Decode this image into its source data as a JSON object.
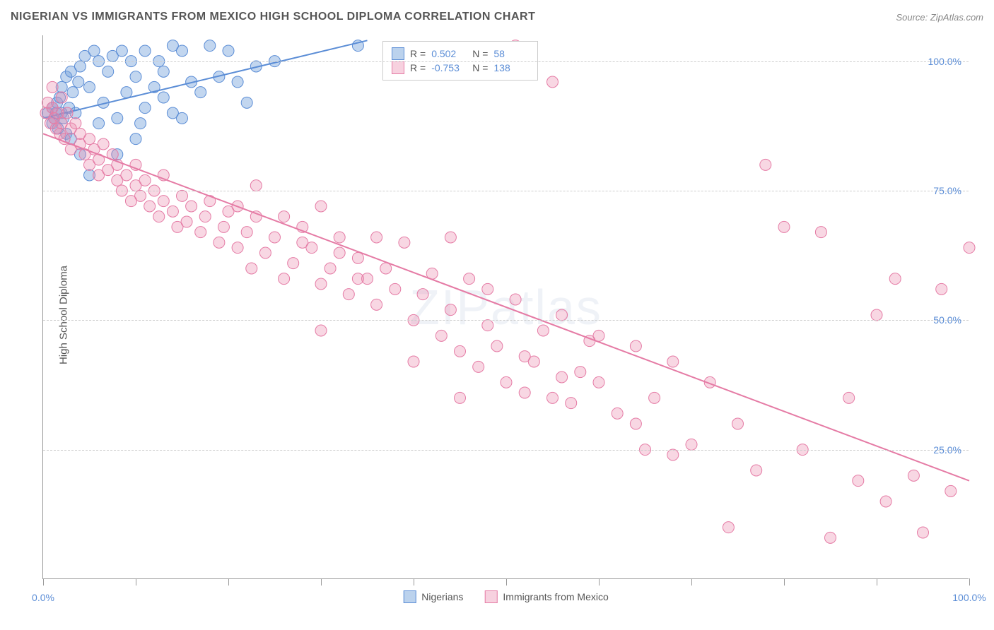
{
  "title": "NIGERIAN VS IMMIGRANTS FROM MEXICO HIGH SCHOOL DIPLOMA CORRELATION CHART",
  "source": "Source: ZipAtlas.com",
  "watermark": "ZIPatlas",
  "ylabel": "High School Diploma",
  "xlim": [
    0,
    100
  ],
  "ylim": [
    0,
    105
  ],
  "xtick_labels": [
    "0.0%",
    "100.0%"
  ],
  "xtick_positions": [
    0,
    100
  ],
  "ytick_labels": [
    "25.0%",
    "50.0%",
    "75.0%",
    "100.0%"
  ],
  "ytick_positions": [
    25,
    50,
    75,
    100
  ],
  "xtick_minor": [
    0,
    10,
    20,
    30,
    40,
    50,
    60,
    70,
    80,
    90,
    100
  ],
  "series": [
    {
      "name": "Nigerians",
      "color_fill": "rgba(120,165,220,0.45)",
      "color_stroke": "#5b8dd6",
      "swatch_fill": "rgba(120,165,220,0.5)",
      "swatch_border": "#5b8dd6",
      "R": "0.502",
      "N": "58",
      "trend": {
        "x1": 0,
        "y1": 89,
        "x2": 35,
        "y2": 104
      },
      "points": [
        [
          0.5,
          90
        ],
        [
          1,
          91
        ],
        [
          1,
          88
        ],
        [
          1.2,
          89
        ],
        [
          1.4,
          90
        ],
        [
          1.5,
          92
        ],
        [
          1.6,
          87
        ],
        [
          1.8,
          93
        ],
        [
          2,
          90
        ],
        [
          2,
          95
        ],
        [
          2.2,
          89
        ],
        [
          2.5,
          86
        ],
        [
          2.5,
          97
        ],
        [
          2.8,
          91
        ],
        [
          3,
          98
        ],
        [
          3,
          85
        ],
        [
          3.2,
          94
        ],
        [
          3.5,
          90
        ],
        [
          3.8,
          96
        ],
        [
          4,
          82
        ],
        [
          4,
          99
        ],
        [
          4.5,
          101
        ],
        [
          5,
          78
        ],
        [
          5,
          95
        ],
        [
          5.5,
          102
        ],
        [
          6,
          100
        ],
        [
          6.5,
          92
        ],
        [
          7,
          98
        ],
        [
          7.5,
          101
        ],
        [
          8,
          89
        ],
        [
          8.5,
          102
        ],
        [
          9,
          94
        ],
        [
          9.5,
          100
        ],
        [
          10,
          97
        ],
        [
          10.5,
          88
        ],
        [
          11,
          102
        ],
        [
          12,
          95
        ],
        [
          12.5,
          100
        ],
        [
          13,
          98
        ],
        [
          14,
          103
        ],
        [
          15,
          102
        ],
        [
          16,
          96
        ],
        [
          17,
          94
        ],
        [
          18,
          103
        ],
        [
          19,
          97
        ],
        [
          20,
          102
        ],
        [
          21,
          96
        ],
        [
          22,
          92
        ],
        [
          23,
          99
        ],
        [
          14,
          90
        ],
        [
          10,
          85
        ],
        [
          8,
          82
        ],
        [
          6,
          88
        ],
        [
          11,
          91
        ],
        [
          13,
          93
        ],
        [
          15,
          89
        ],
        [
          34,
          103
        ],
        [
          25,
          100
        ]
      ]
    },
    {
      "name": "Immigrants from Mexico",
      "color_fill": "rgba(235,140,175,0.35)",
      "color_stroke": "#e57ba5",
      "swatch_fill": "rgba(235,140,175,0.4)",
      "swatch_border": "#e57ba5",
      "R": "-0.753",
      "N": "138",
      "trend": {
        "x1": 0,
        "y1": 86,
        "x2": 100,
        "y2": 19
      },
      "points": [
        [
          0.3,
          90
        ],
        [
          0.5,
          92
        ],
        [
          0.8,
          88
        ],
        [
          1,
          91
        ],
        [
          1,
          95
        ],
        [
          1.2,
          89
        ],
        [
          1.4,
          87
        ],
        [
          1.6,
          90
        ],
        [
          1.8,
          86
        ],
        [
          2,
          88
        ],
        [
          2,
          93
        ],
        [
          2.3,
          85
        ],
        [
          2.6,
          90
        ],
        [
          3,
          87
        ],
        [
          3,
          83
        ],
        [
          3.5,
          88
        ],
        [
          4,
          84
        ],
        [
          4,
          86
        ],
        [
          4.5,
          82
        ],
        [
          5,
          85
        ],
        [
          5,
          80
        ],
        [
          5.5,
          83
        ],
        [
          6,
          81
        ],
        [
          6,
          78
        ],
        [
          6.5,
          84
        ],
        [
          7,
          79
        ],
        [
          7.5,
          82
        ],
        [
          8,
          77
        ],
        [
          8,
          80
        ],
        [
          8.5,
          75
        ],
        [
          9,
          78
        ],
        [
          9.5,
          73
        ],
        [
          10,
          76
        ],
        [
          10,
          80
        ],
        [
          10.5,
          74
        ],
        [
          11,
          77
        ],
        [
          11.5,
          72
        ],
        [
          12,
          75
        ],
        [
          12.5,
          70
        ],
        [
          13,
          73
        ],
        [
          13,
          78
        ],
        [
          14,
          71
        ],
        [
          14.5,
          68
        ],
        [
          15,
          74
        ],
        [
          15.5,
          69
        ],
        [
          16,
          72
        ],
        [
          17,
          67
        ],
        [
          17.5,
          70
        ],
        [
          18,
          73
        ],
        [
          19,
          65
        ],
        [
          19.5,
          68
        ],
        [
          20,
          71
        ],
        [
          21,
          64
        ],
        [
          22,
          67
        ],
        [
          22.5,
          60
        ],
        [
          23,
          70
        ],
        [
          24,
          63
        ],
        [
          25,
          66
        ],
        [
          26,
          58
        ],
        [
          27,
          61
        ],
        [
          28,
          65
        ],
        [
          29,
          64
        ],
        [
          30,
          57
        ],
        [
          31,
          60
        ],
        [
          32,
          66
        ],
        [
          33,
          55
        ],
        [
          34,
          62
        ],
        [
          35,
          58
        ],
        [
          36,
          53
        ],
        [
          37,
          60
        ],
        [
          38,
          56
        ],
        [
          39,
          65
        ],
        [
          40,
          50
        ],
        [
          41,
          55
        ],
        [
          42,
          59
        ],
        [
          43,
          47
        ],
        [
          44,
          52
        ],
        [
          45,
          44
        ],
        [
          46,
          58
        ],
        [
          47,
          41
        ],
        [
          48,
          49
        ],
        [
          49,
          45
        ],
        [
          50,
          38
        ],
        [
          51,
          54
        ],
        [
          52,
          36
        ],
        [
          53,
          42
        ],
        [
          54,
          48
        ],
        [
          55,
          35
        ],
        [
          56,
          51
        ],
        [
          57,
          34
        ],
        [
          58,
          40
        ],
        [
          59,
          46
        ],
        [
          60,
          38
        ],
        [
          62,
          32
        ],
        [
          64,
          45
        ],
        [
          65,
          25
        ],
        [
          66,
          35
        ],
        [
          68,
          42
        ],
        [
          70,
          26
        ],
        [
          72,
          38
        ],
        [
          74,
          10
        ],
        [
          75,
          30
        ],
        [
          77,
          21
        ],
        [
          78,
          80
        ],
        [
          80,
          68
        ],
        [
          82,
          25
        ],
        [
          84,
          67
        ],
        [
          85,
          8
        ],
        [
          87,
          35
        ],
        [
          88,
          19
        ],
        [
          90,
          51
        ],
        [
          91,
          15
        ],
        [
          92,
          58
        ],
        [
          94,
          20
        ],
        [
          95,
          9
        ],
        [
          97,
          56
        ],
        [
          98,
          17
        ],
        [
          100,
          64
        ],
        [
          21,
          72
        ],
        [
          23,
          76
        ],
        [
          26,
          70
        ],
        [
          28,
          68
        ],
        [
          30,
          72
        ],
        [
          32,
          63
        ],
        [
          34,
          58
        ],
        [
          36,
          66
        ],
        [
          44,
          66
        ],
        [
          48,
          56
        ],
        [
          52,
          43
        ],
        [
          56,
          39
        ],
        [
          60,
          47
        ],
        [
          64,
          30
        ],
        [
          68,
          24
        ],
        [
          51,
          103
        ],
        [
          55,
          96
        ],
        [
          30,
          48
        ],
        [
          40,
          42
        ],
        [
          45,
          35
        ]
      ]
    }
  ],
  "marker_radius": 8,
  "trend_line_width": 2,
  "plot_bg": "#ffffff",
  "grid_color": "#cccccc"
}
